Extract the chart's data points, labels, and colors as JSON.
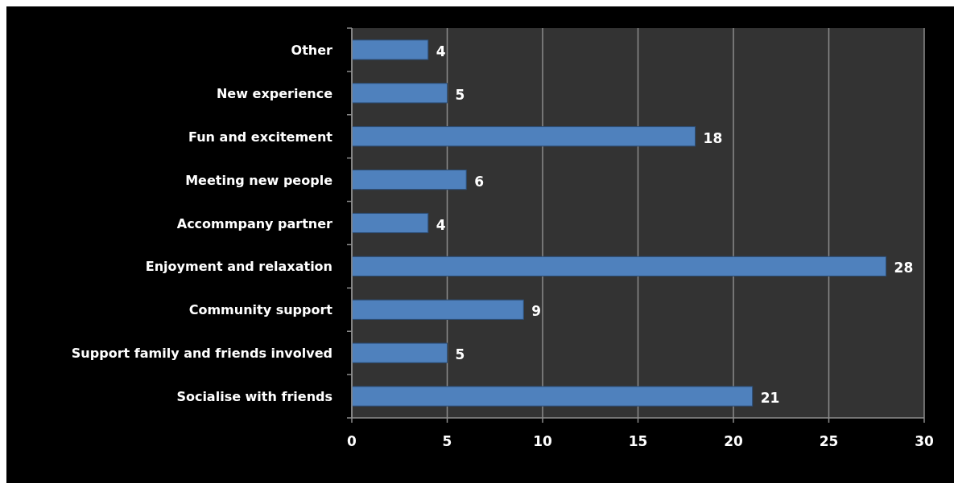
{
  "chart_data": {
    "type": "bar",
    "orientation": "horizontal",
    "categories": [
      "Other",
      "New experience",
      "Fun and excitement",
      "Meeting new people",
      "Accommpany partner",
      "Enjoyment and relaxation",
      "Community support",
      "Support family and friends involved",
      "Socialise with friends"
    ],
    "values": [
      4,
      5,
      18,
      6,
      4,
      28,
      9,
      5,
      21
    ],
    "color": "#4f81bd",
    "xlim": [
      0,
      30
    ],
    "xticks": [
      0,
      5,
      10,
      15,
      20,
      25,
      30
    ],
    "grid": "x",
    "data_labels": true
  }
}
